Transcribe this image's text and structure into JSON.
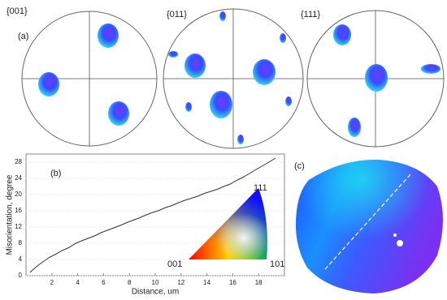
{
  "chart_data": {
    "type": "line",
    "ylabel": "Misorientation, degree",
    "xlabel": "Distance, um",
    "x": [
      0.3,
      0.8,
      1.3,
      1.8,
      2.3,
      2.8,
      3.3,
      3.8,
      4.3,
      4.8,
      5.3,
      5.8,
      6.3,
      6.8,
      7.3,
      7.8,
      8.3,
      8.8,
      9.3,
      9.8,
      10.3,
      10.8,
      11.3,
      11.8,
      12.3,
      12.8,
      13.3,
      13.8,
      14.3,
      14.8,
      15.3,
      15.8,
      16.3,
      16.8,
      17.3,
      17.8,
      18.3,
      18.8,
      19.3
    ],
    "values": [
      0.8,
      2.2,
      3.4,
      4.5,
      5.3,
      6.2,
      6.9,
      7.9,
      8.6,
      9.2,
      9.8,
      10.6,
      11.2,
      11.8,
      12.4,
      13.1,
      13.7,
      14.3,
      15.0,
      15.6,
      16.1,
      16.8,
      17.3,
      18.0,
      18.6,
      19.1,
      19.6,
      20.3,
      20.8,
      21.3,
      22.0,
      22.6,
      23.5,
      24.3,
      25.2,
      26.2,
      27.1,
      28.0,
      29.0
    ],
    "color": "#333333",
    "xlim": [
      0,
      20
    ],
    "xticks": [
      2,
      4,
      6,
      8,
      10,
      12,
      14,
      16,
      18
    ],
    "ylim": [
      0,
      30
    ],
    "yticks": [
      0,
      4,
      8,
      12,
      16,
      20,
      24,
      28
    ],
    "grid": true
  },
  "panels": {
    "a": "(a)",
    "b": "(b)",
    "c": "(c)"
  },
  "pole_figures": [
    "{001}",
    "{011}",
    "{111}"
  ],
  "ipf_labels": {
    "origin": "001",
    "right": "101",
    "top": "111"
  }
}
